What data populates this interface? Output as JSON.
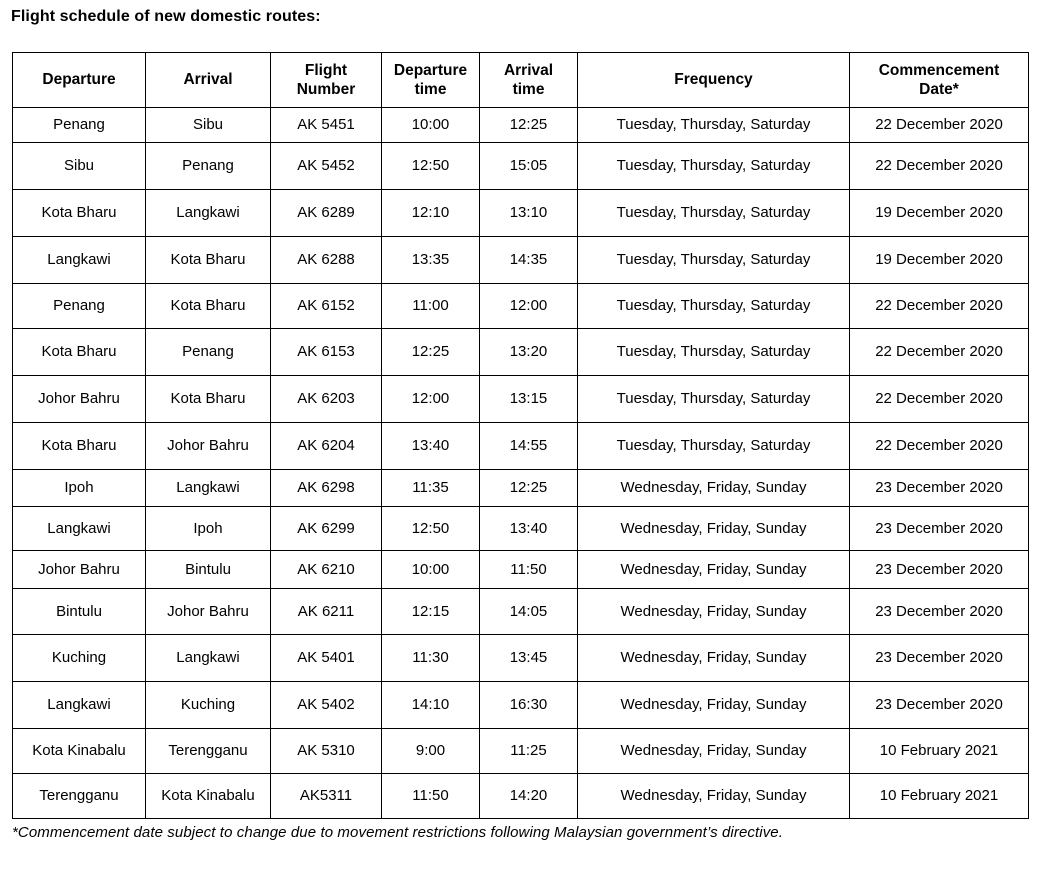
{
  "title": "Flight schedule of new domestic routes:",
  "table": {
    "columns": [
      {
        "key": "departure",
        "label": "Departure"
      },
      {
        "key": "arrival",
        "label": "Arrival"
      },
      {
        "key": "flight_number",
        "label": "Flight\nNumber"
      },
      {
        "key": "departure_time",
        "label": "Departure\ntime"
      },
      {
        "key": "arrival_time",
        "label": "Arrival\ntime"
      },
      {
        "key": "frequency",
        "label": "Frequency"
      },
      {
        "key": "commencement_date",
        "label": "Commencement\nDate*"
      }
    ],
    "rows": [
      {
        "departure": "Penang",
        "arrival": "Sibu",
        "flight_number": "AK 5451",
        "departure_time": "10:00",
        "arrival_time": "12:25",
        "frequency": "Tuesday, Thursday, Saturday",
        "commencement_date": "22 December 2020"
      },
      {
        "departure": "Sibu",
        "arrival": "Penang",
        "flight_number": "AK 5452",
        "departure_time": "12:50",
        "arrival_time": "15:05",
        "frequency": "Tuesday, Thursday, Saturday",
        "commencement_date": "22 December 2020"
      },
      {
        "departure": "Kota Bharu",
        "arrival": "Langkawi",
        "flight_number": "AK 6289",
        "departure_time": "12:10",
        "arrival_time": "13:10",
        "frequency": "Tuesday, Thursday, Saturday",
        "commencement_date": "19 December 2020"
      },
      {
        "departure": "Langkawi",
        "arrival": "Kota Bharu",
        "flight_number": "AK 6288",
        "departure_time": "13:35",
        "arrival_time": "14:35",
        "frequency": "Tuesday, Thursday, Saturday",
        "commencement_date": "19 December 2020"
      },
      {
        "departure": "Penang",
        "arrival": "Kota Bharu",
        "flight_number": "AK 6152",
        "departure_time": "11:00",
        "arrival_time": "12:00",
        "frequency": "Tuesday, Thursday, Saturday",
        "commencement_date": "22 December 2020"
      },
      {
        "departure": "Kota Bharu",
        "arrival": "Penang",
        "flight_number": "AK 6153",
        "departure_time": "12:25",
        "arrival_time": "13:20",
        "frequency": "Tuesday, Thursday, Saturday",
        "commencement_date": "22 December 2020"
      },
      {
        "departure": "Johor Bahru",
        "arrival": "Kota Bharu",
        "flight_number": "AK 6203",
        "departure_time": "12:00",
        "arrival_time": "13:15",
        "frequency": "Tuesday, Thursday, Saturday",
        "commencement_date": "22 December 2020"
      },
      {
        "departure": "Kota Bharu",
        "arrival": "Johor Bahru",
        "flight_number": "AK 6204",
        "departure_time": "13:40",
        "arrival_time": "14:55",
        "frequency": "Tuesday, Thursday, Saturday",
        "commencement_date": "22 December 2020"
      },
      {
        "departure": "Ipoh",
        "arrival": "Langkawi",
        "flight_number": "AK 6298",
        "departure_time": "11:35",
        "arrival_time": "12:25",
        "frequency": "Wednesday, Friday, Sunday",
        "commencement_date": "23 December 2020"
      },
      {
        "departure": "Langkawi",
        "arrival": "Ipoh",
        "flight_number": "AK 6299",
        "departure_time": "12:50",
        "arrival_time": "13:40",
        "frequency": "Wednesday, Friday, Sunday",
        "commencement_date": "23 December 2020"
      },
      {
        "departure": "Johor Bahru",
        "arrival": "Bintulu",
        "flight_number": "AK 6210",
        "departure_time": "10:00",
        "arrival_time": "11:50",
        "frequency": "Wednesday, Friday, Sunday",
        "commencement_date": "23 December 2020"
      },
      {
        "departure": "Bintulu",
        "arrival": "Johor Bahru",
        "flight_number": "AK 6211",
        "departure_time": "12:15",
        "arrival_time": "14:05",
        "frequency": "Wednesday, Friday, Sunday",
        "commencement_date": "23 December 2020"
      },
      {
        "departure": "Kuching",
        "arrival": "Langkawi",
        "flight_number": "AK 5401",
        "departure_time": "11:30",
        "arrival_time": "13:45",
        "frequency": "Wednesday, Friday, Sunday",
        "commencement_date": "23 December 2020"
      },
      {
        "departure": "Langkawi",
        "arrival": "Kuching",
        "flight_number": "AK 5402",
        "departure_time": "14:10",
        "arrival_time": "16:30",
        "frequency": "Wednesday, Friday, Sunday",
        "commencement_date": "23 December 2020"
      },
      {
        "departure": "Kota Kinabalu",
        "arrival": "Terengganu",
        "flight_number": "AK 5310",
        "departure_time": "9:00",
        "arrival_time": "11:25",
        "frequency": "Wednesday, Friday, Sunday",
        "commencement_date": "10 February 2021"
      },
      {
        "departure": "Terengganu",
        "arrival": "Kota Kinabalu",
        "flight_number": "AK5311",
        "departure_time": "11:50",
        "arrival_time": "14:20",
        "frequency": "Wednesday, Friday, Sunday",
        "commencement_date": "10 February 2021"
      }
    ]
  },
  "footnote": "*Commencement date subject to change due to movement restrictions following Malaysian government’s directive."
}
